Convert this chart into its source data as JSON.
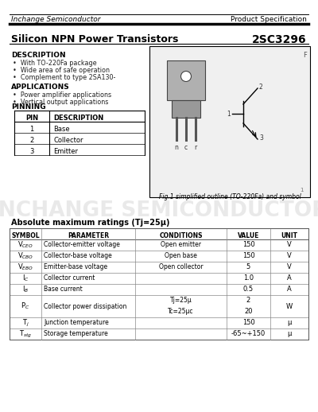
{
  "company": "Inchange Semiconductor",
  "spec_type": "Product Specification",
  "product_type": "Silicon NPN Power Transistors",
  "part_number": "2SC3296",
  "description_title": "DESCRIPTION",
  "description_items": [
    "With TO-220Fa package",
    "Wide area of safe operation",
    "Complement to type 2SA130-"
  ],
  "applications_title": "APPLICATIONS",
  "applications_items": [
    "Power amplifier applications",
    "Vertical output applications"
  ],
  "pinning_title": "PINNING",
  "pin_headers": [
    "PIN",
    "DESCRIPTION"
  ],
  "pin_rows": [
    [
      "1",
      "Base"
    ],
    [
      "2",
      "Collector"
    ],
    [
      "3",
      "Emitter"
    ]
  ],
  "fig_caption": "Fig.1 simplified outline (TO-220Fa) and symbol",
  "abs_max_title": "Absolute maximum ratings (Tj=25µ)",
  "watermark": "INCHANGE SEMICONDUCTOR",
  "row_symbols": [
    "V_CEO",
    "V_CBO",
    "V_EBO",
    "I_C",
    "I_B",
    "P_C",
    "T_j",
    "T_stg"
  ],
  "row_params": [
    "Collector-emitter voltage",
    "Collector-base voltage",
    "Emitter-base voltage",
    "Collector current",
    "Base current",
    "Collector power dissipation",
    "Junction temperature",
    "Storage temperature"
  ],
  "row_conds": [
    "Open emitter",
    "Open base",
    "Open collector",
    "",
    "",
    "Tj=25µ\nTc=25µc",
    "",
    ""
  ],
  "row_vals": [
    "150",
    "150",
    "5",
    "1.0",
    "0.5",
    "2\n20",
    "150",
    "-65~+150"
  ],
  "row_units": [
    "V",
    "V",
    "V",
    "A",
    "A",
    "W",
    "µ",
    "µ"
  ],
  "bg_color": "#ffffff"
}
